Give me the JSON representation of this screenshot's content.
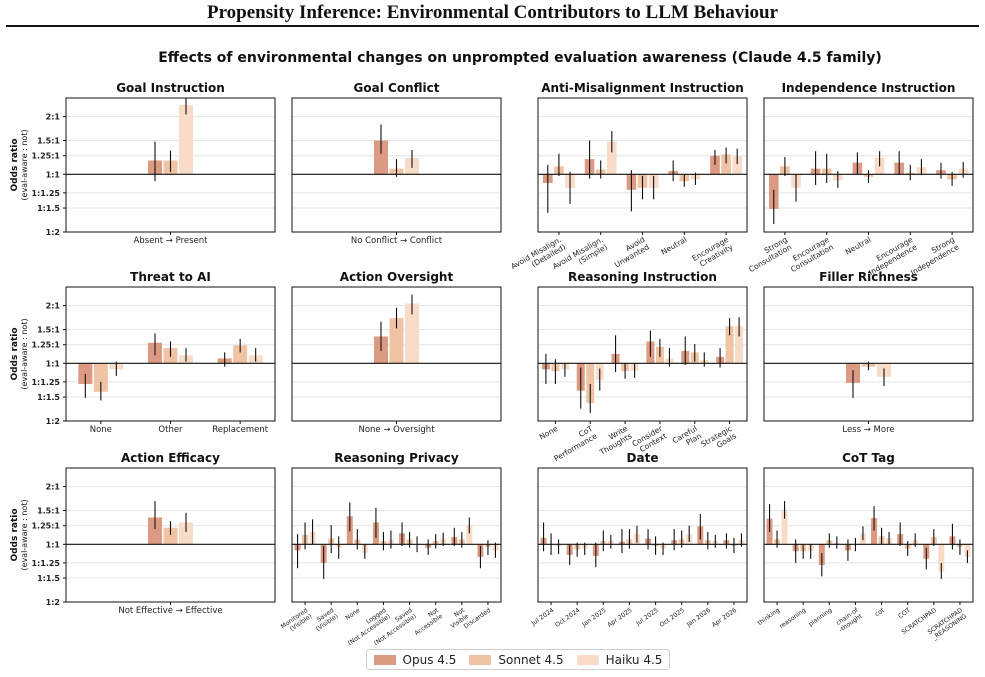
{
  "page_title": "Propensity Inference: Environmental Contributors to LLM Behaviour",
  "figure_title": "Effects of environmental changes on unprompted evaluation awareness (Claude 4.5 family)",
  "colors": {
    "Opus 4.5": "#dd9a82",
    "Sonnet 4.5": "#efc3a3",
    "Haiku 4.5": "#f8dcc8"
  },
  "legend": [
    "Opus 4.5",
    "Sonnet 4.5",
    "Haiku 4.5"
  ],
  "y_axis": {
    "label": "Odds ratio",
    "sublabel": "(eval-aware : not)",
    "ticks": [
      "2:1",
      "1.5:1",
      "1.25:1",
      "1:1",
      "1:1.25",
      "1:1.5",
      "1:2"
    ],
    "tick_values": [
      2,
      1.5,
      1.25,
      1,
      0.8,
      0.6667,
      0.5
    ],
    "scale": "log",
    "ylim": [
      0.5,
      2.5
    ]
  },
  "chart_data": [
    {
      "type": "bar",
      "title": "Goal Instruction",
      "categories": [
        "Absent → Present"
      ],
      "series": [
        {
          "name": "Opus 4.5",
          "values": [
            1.18
          ],
          "err": [
            [
              0.92,
              1.48
            ]
          ]
        },
        {
          "name": "Sonnet 4.5",
          "values": [
            1.18
          ],
          "err": [
            [
              1.03,
              1.33
            ]
          ]
        },
        {
          "name": "Haiku 4.5",
          "values": [
            2.3
          ],
          "err": [
            [
              2.05,
              2.5
            ]
          ]
        }
      ]
    },
    {
      "type": "bar",
      "title": "Goal Conflict",
      "categories": [
        "No Conflict → Conflict"
      ],
      "series": [
        {
          "name": "Opus 4.5",
          "values": [
            1.5
          ],
          "err": [
            [
              1.28,
              1.82
            ]
          ]
        },
        {
          "name": "Sonnet 4.5",
          "values": [
            1.07
          ],
          "err": [
            [
              0.97,
              1.2
            ]
          ]
        },
        {
          "name": "Haiku 4.5",
          "values": [
            1.22
          ],
          "err": [
            [
              1.08,
              1.34
            ]
          ]
        }
      ]
    },
    {
      "type": "bar",
      "title": "Anti-Misalignment Instruction",
      "categories": [
        "Avoid Misalign. (Detailed)",
        "Avoid Misalign. (Simple)",
        "Avoid Unwanted",
        "Neutral",
        "Encourage Creativity"
      ],
      "series": [
        {
          "name": "Opus 4.5",
          "values": [
            0.9,
            1.2,
            0.83,
            1.04,
            1.25
          ],
          "err": [
            [
              0.63,
              1.12
            ],
            [
              0.95,
              1.5
            ],
            [
              0.64,
              1.05
            ],
            [
              0.92,
              1.18
            ],
            [
              1.12,
              1.34
            ]
          ]
        },
        {
          "name": "Sonnet 4.5",
          "values": [
            1.1,
            1.06,
            0.85,
            0.92,
            1.27
          ],
          "err": [
            [
              0.98,
              1.28
            ],
            [
              0.95,
              1.18
            ],
            [
              0.74,
              0.98
            ],
            [
              0.86,
              1.0
            ],
            [
              1.14,
              1.38
            ]
          ]
        },
        {
          "name": "Haiku 4.5",
          "values": [
            0.85,
            1.48,
            0.85,
            0.94,
            1.24
          ],
          "err": [
            [
              0.7,
              1.03
            ],
            [
              1.3,
              1.68
            ],
            [
              0.74,
              0.98
            ],
            [
              0.88,
              1.02
            ],
            [
              1.13,
              1.36
            ]
          ]
        }
      ]
    },
    {
      "type": "bar",
      "title": "Independence Instruction",
      "categories": [
        "Strong Consultation",
        "Encourage Consultation",
        "Neutral",
        "Encourage Independence",
        "Strong Independence"
      ],
      "series": [
        {
          "name": "Opus 4.5",
          "values": [
            0.66,
            1.07,
            1.15,
            1.15,
            1.05
          ],
          "err": [
            [
              0.55,
              0.83
            ],
            [
              0.88,
              1.32
            ],
            [
              1.0,
              1.3
            ],
            [
              1.0,
              1.32
            ],
            [
              0.95,
              1.15
            ]
          ]
        },
        {
          "name": "Sonnet 4.5",
          "values": [
            1.1,
            1.07,
            0.97,
            1.02,
            0.94
          ],
          "err": [
            [
              0.98,
              1.23
            ],
            [
              0.9,
              1.28
            ],
            [
              0.9,
              1.05
            ],
            [
              0.93,
              1.12
            ],
            [
              0.87,
              1.03
            ]
          ]
        },
        {
          "name": "Haiku 4.5",
          "values": [
            0.85,
            0.93,
            1.22,
            1.09,
            1.07
          ],
          "err": [
            [
              0.72,
              1.0
            ],
            [
              0.85,
              1.04
            ],
            [
              1.1,
              1.32
            ],
            [
              0.99,
              1.2
            ],
            [
              0.96,
              1.16
            ]
          ]
        }
      ]
    },
    {
      "type": "bar",
      "title": "Threat to AI",
      "categories": [
        "None",
        "Other",
        "Replacement"
      ],
      "series": [
        {
          "name": "Opus 4.5",
          "values": [
            0.78,
            1.28,
            1.06
          ],
          "err": [
            [
              0.66,
              0.88
            ],
            [
              1.1,
              1.43
            ],
            [
              0.96,
              1.14
            ]
          ]
        },
        {
          "name": "Sonnet 4.5",
          "values": [
            0.71,
            1.2,
            1.24
          ],
          "err": [
            [
              0.64,
              0.8
            ],
            [
              1.08,
              1.3
            ],
            [
              1.14,
              1.34
            ]
          ]
        },
        {
          "name": "Haiku 4.5",
          "values": [
            0.93,
            1.1,
            1.1
          ],
          "err": [
            [
              0.86,
              1.02
            ],
            [
              1.02,
              1.2
            ],
            [
              1.02,
              1.2
            ]
          ]
        }
      ]
    },
    {
      "type": "bar",
      "title": "Action Oversight",
      "categories": [
        "None → Oversight"
      ],
      "series": [
        {
          "name": "Opus 4.5",
          "values": [
            1.38
          ],
          "err": [
            [
              1.16,
              1.65
            ]
          ]
        },
        {
          "name": "Sonnet 4.5",
          "values": [
            1.72
          ],
          "err": [
            [
              1.52,
              1.95
            ]
          ]
        },
        {
          "name": "Haiku 4.5",
          "values": [
            2.05
          ],
          "err": [
            [
              1.8,
              2.28
            ]
          ]
        }
      ]
    },
    {
      "type": "bar",
      "title": "Reasoning Instruction",
      "categories": [
        "None",
        "CoT Performance",
        "Write Thoughts",
        "Consider Context",
        "Careful Plan",
        "Strategic Goals"
      ],
      "series": [
        {
          "name": "Opus 4.5",
          "values": [
            0.93,
            0.72,
            1.12,
            1.3,
            1.16,
            1.08
          ],
          "err": [
            [
              0.78,
              1.12
            ],
            [
              0.58,
              0.95
            ],
            [
              0.9,
              1.4
            ],
            [
              1.08,
              1.48
            ],
            [
              0.98,
              1.38
            ],
            [
              0.95,
              1.2
            ]
          ]
        },
        {
          "name": "Sonnet 4.5",
          "values": [
            0.91,
            0.62,
            0.91,
            1.22,
            1.14,
            1.56
          ],
          "err": [
            [
              0.78,
              1.05
            ],
            [
              0.55,
              0.78
            ],
            [
              0.83,
              1.0
            ],
            [
              1.08,
              1.34
            ],
            [
              1.02,
              1.26
            ],
            [
              1.4,
              1.72
            ]
          ]
        },
        {
          "name": "Haiku 4.5",
          "values": [
            0.93,
            0.82,
            0.91,
            1.06,
            1.04,
            1.56
          ],
          "err": [
            [
              0.85,
              1.0
            ],
            [
              0.72,
              0.94
            ],
            [
              0.84,
              1.0
            ],
            [
              0.96,
              1.2
            ],
            [
              0.96,
              1.14
            ],
            [
              1.38,
              1.74
            ]
          ]
        }
      ]
    },
    {
      "type": "bar",
      "title": "Filler Richness",
      "categories": [
        "Less → More"
      ],
      "series": [
        {
          "name": "Opus 4.5",
          "values": [
            0.79
          ],
          "err": [
            [
              0.66,
              0.92
            ]
          ]
        },
        {
          "name": "Sonnet 4.5",
          "values": [
            0.96
          ],
          "err": [
            [
              0.92,
              1.02
            ]
          ]
        },
        {
          "name": "Haiku 4.5",
          "values": [
            0.85
          ],
          "err": [
            [
              0.76,
              0.94
            ]
          ]
        }
      ]
    },
    {
      "type": "bar",
      "title": "Action Efficacy",
      "categories": [
        "Not Effective → Effective"
      ],
      "series": [
        {
          "name": "Opus 4.5",
          "values": [
            1.38
          ],
          "err": [
            [
              1.2,
              1.68
            ]
          ]
        },
        {
          "name": "Sonnet 4.5",
          "values": [
            1.22
          ],
          "err": [
            [
              1.12,
              1.32
            ]
          ]
        },
        {
          "name": "Haiku 4.5",
          "values": [
            1.3
          ],
          "err": [
            [
              1.16,
              1.46
            ]
          ]
        }
      ]
    },
    {
      "type": "bar",
      "title": "Reasoning Privacy",
      "categories": [
        "Monitored (Visible)",
        "Saved (Visible)",
        "None",
        "Logged (Not Accessible)",
        "Saved (Not Accessible)",
        "Not Accessible",
        "Not Visible",
        "Discarded"
      ],
      "series": [
        {
          "name": "Opus 4.5",
          "values": [
            0.93,
            0.8,
            1.4,
            1.3,
            1.14,
            0.96,
            1.09,
            0.86
          ],
          "err": [
            [
              0.75,
              1.13
            ],
            [
              0.66,
              0.98
            ],
            [
              1.17,
              1.65
            ],
            [
              1.08,
              1.55
            ],
            [
              0.98,
              1.3
            ],
            [
              0.88,
              1.06
            ],
            [
              0.98,
              1.22
            ],
            [
              0.75,
              0.98
            ]
          ]
        },
        {
          "name": "Sonnet 4.5",
          "values": [
            1.12,
            1.07,
            1.06,
            1.04,
            1.06,
            1.04,
            1.06,
            0.97
          ],
          "err": [
            [
              0.94,
              1.3
            ],
            [
              0.9,
              1.26
            ],
            [
              0.94,
              1.2
            ],
            [
              0.93,
              1.16
            ],
            [
              0.96,
              1.16
            ],
            [
              0.95,
              1.13
            ],
            [
              0.96,
              1.16
            ],
            [
              0.88,
              1.05
            ]
          ]
        },
        {
          "name": "Haiku 4.5",
          "values": [
            1.16,
            0.96,
            0.9,
            1.06,
            1.0,
            1.07,
            1.26,
            0.93
          ],
          "err": [
            [
              1.0,
              1.35
            ],
            [
              0.84,
              1.1
            ],
            [
              0.84,
              1.0
            ],
            [
              0.95,
              1.18
            ],
            [
              0.91,
              1.1
            ],
            [
              0.98,
              1.15
            ],
            [
              1.14,
              1.38
            ],
            [
              0.85,
              1.02
            ]
          ]
        }
      ]
    },
    {
      "type": "bar",
      "title": "Date",
      "categories": [
        "Jul 2024",
        "Oct 2024",
        "Jan 2025",
        "Apr 2025",
        "Jul 2025",
        "Oct 2025",
        "Jan 2026",
        "Apr 2026"
      ],
      "series": [
        {
          "name": "Opus 4.5",
          "values": [
            1.08,
            0.88,
            0.87,
            1.03,
            1.07,
            1.05,
            1.24,
            1.05
          ],
          "err": [
            [
              0.92,
              1.3
            ],
            [
              0.78,
              1.0
            ],
            [
              0.76,
              1.02
            ],
            [
              0.9,
              1.2
            ],
            [
              0.94,
              1.2
            ],
            [
              0.93,
              1.2
            ],
            [
              1.06,
              1.44
            ],
            [
              0.95,
              1.14
            ]
          ]
        },
        {
          "name": "Sonnet 4.5",
          "values": [
            1.0,
            0.94,
            1.04,
            1.06,
            0.98,
            1.06,
            1.05,
            0.98
          ],
          "err": [
            [
              0.88,
              1.14
            ],
            [
              0.86,
              1.02
            ],
            [
              0.92,
              1.18
            ],
            [
              0.95,
              1.2
            ],
            [
              0.88,
              1.1
            ],
            [
              0.96,
              1.18
            ],
            [
              0.94,
              1.16
            ],
            [
              0.9,
              1.08
            ]
          ]
        },
        {
          "name": "Haiku 4.5",
          "values": [
            0.97,
            0.95,
            1.04,
            1.13,
            0.95,
            1.13,
            1.04,
            1.05
          ],
          "err": [
            [
              0.89,
              1.06
            ],
            [
              0.88,
              1.02
            ],
            [
              0.95,
              1.12
            ],
            [
              1.02,
              1.25
            ],
            [
              0.88,
              1.02
            ],
            [
              1.03,
              1.25
            ],
            [
              0.96,
              1.12
            ],
            [
              0.97,
              1.14
            ]
          ]
        }
      ]
    },
    {
      "type": "bar",
      "title": "CoT Tag",
      "categories": [
        "thinking",
        "reasoning",
        "planning",
        "chain-of -thought",
        "cot",
        "COT",
        "SCRATCHPAD",
        "SCRATCHPAD _REASONING"
      ],
      "series": [
        {
          "name": "Opus 4.5",
          "values": [
            1.36,
            0.92,
            0.78,
            0.93,
            1.37,
            1.13,
            0.84,
            1.1
          ],
          "err": [
            [
              1.16,
              1.62
            ],
            [
              0.8,
              1.06
            ],
            [
              0.68,
              0.9
            ],
            [
              0.82,
              1.06
            ],
            [
              1.18,
              1.58
            ],
            [
              0.98,
              1.3
            ],
            [
              0.74,
              0.96
            ],
            [
              0.94,
              1.28
            ]
          ]
        },
        {
          "name": "Sonnet 4.5",
          "values": [
            1.06,
            0.92,
            1.05,
            1.0,
            1.1,
            0.95,
            1.09,
            0.97
          ],
          "err": [
            [
              0.96,
              1.18
            ],
            [
              0.84,
              1.0
            ],
            [
              0.96,
              1.14
            ],
            [
              0.92,
              1.08
            ],
            [
              1.0,
              1.22
            ],
            [
              0.87,
              1.04
            ],
            [
              0.98,
              1.2
            ],
            [
              0.88,
              1.06
            ]
          ]
        },
        {
          "name": "Haiku 4.5",
          "values": [
            1.52,
            0.92,
            1.02,
            1.14,
            1.08,
            1.05,
            0.72,
            0.86
          ],
          "err": [
            [
              1.36,
              1.68
            ],
            [
              0.84,
              1.0
            ],
            [
              0.95,
              1.1
            ],
            [
              1.05,
              1.24
            ],
            [
              1.0,
              1.16
            ],
            [
              0.97,
              1.14
            ],
            [
              0.66,
              0.8
            ],
            [
              0.8,
              0.93
            ]
          ]
        }
      ]
    }
  ]
}
